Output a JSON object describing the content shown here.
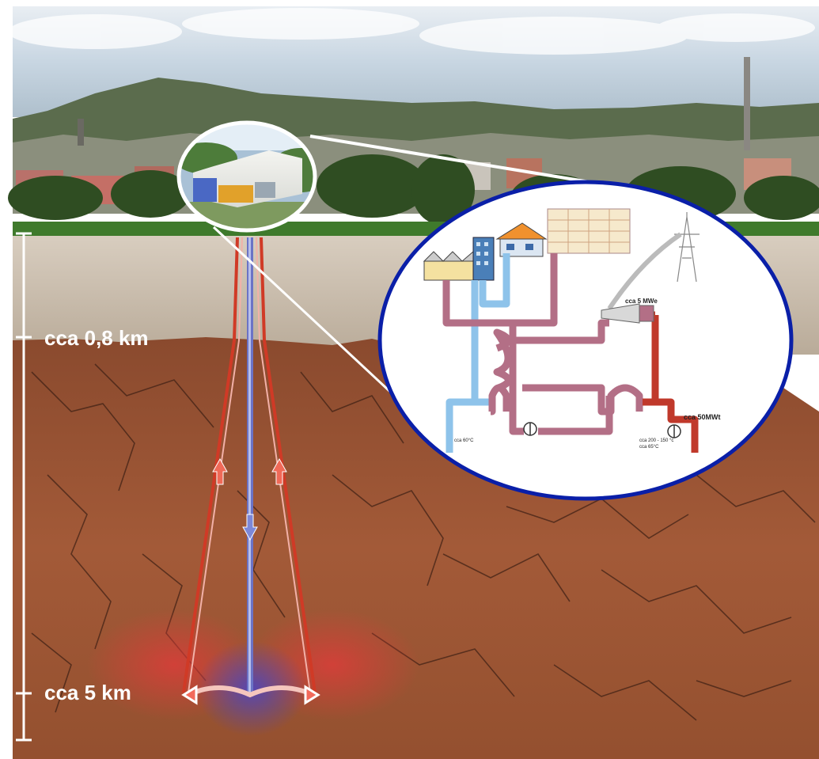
{
  "depth_scale": {
    "markers": [
      {
        "label": "cca 0,8 km"
      },
      {
        "label": "cca 5 km"
      }
    ]
  },
  "plant_diagram": {
    "power_label": "cca 5 MWe",
    "heat_label": "cca 50MWt",
    "cold_return_label": "cca 60°C",
    "hot_supply_label": "cca 200 - 150 °c",
    "outlet_temp_label": "cca 65°C"
  },
  "colors": {
    "sky": "#c9d9e6",
    "hills": "#5f7050",
    "grass": "#3f7a2c",
    "sediment": "#cdbfae",
    "rock": "#9a5637",
    "hot_pipe": "#d03a26",
    "cold_pipe": "#6074c8",
    "circuit_hot": "#c0392b",
    "circuit_mid": "#b36f86",
    "circuit_cold": "#8ec3ea",
    "frame_blue": "#0a1fa8"
  }
}
